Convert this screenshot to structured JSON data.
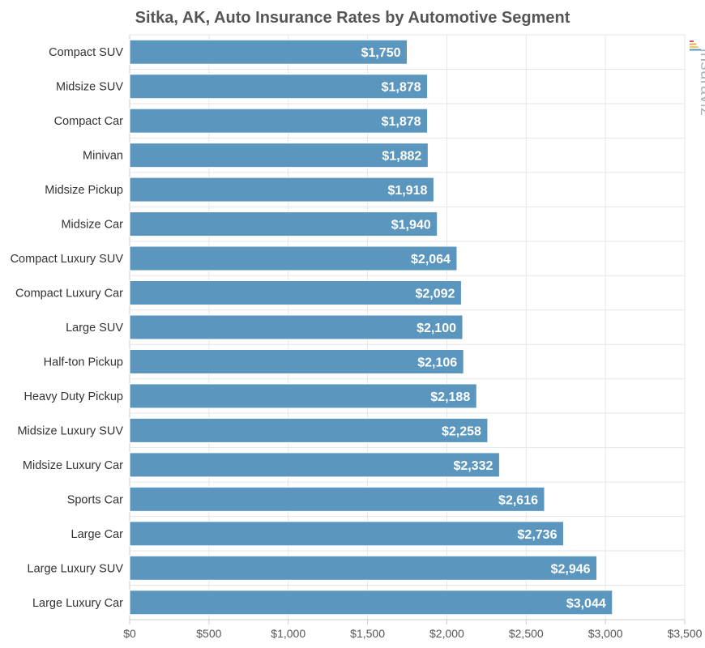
{
  "chart_data": {
    "type": "bar",
    "orientation": "horizontal",
    "title": "Sitka, AK, Auto Insurance Rates by Automotive Segment",
    "categories": [
      "Compact SUV",
      "Midsize SUV",
      "Compact Car",
      "Minivan",
      "Midsize Pickup",
      "Midsize Car",
      "Compact Luxury SUV",
      "Compact Luxury Car",
      "Large SUV",
      "Half-ton Pickup",
      "Heavy Duty Pickup",
      "Midsize Luxury SUV",
      "Midsize Luxury Car",
      "Sports Car",
      "Large Car",
      "Large Luxury SUV",
      "Large Luxury Car"
    ],
    "values": [
      1750,
      1878,
      1878,
      1882,
      1918,
      1940,
      2064,
      2092,
      2100,
      2106,
      2188,
      2258,
      2332,
      2616,
      2736,
      2946,
      3044
    ],
    "data_labels": [
      "$1,750",
      "$1,878",
      "$1,878",
      "$1,882",
      "$1,918",
      "$1,940",
      "$2,064",
      "$2,092",
      "$2,100",
      "$2,106",
      "$2,188",
      "$2,258",
      "$2,332",
      "$2,616",
      "$2,736",
      "$2,946",
      "$3,044"
    ],
    "x_ticks": [
      0,
      500,
      1000,
      1500,
      2000,
      2500,
      3000,
      3500
    ],
    "x_tick_labels": [
      "$0",
      "$500",
      "$1,000",
      "$1,500",
      "$2,000",
      "$2,500",
      "$3,000",
      "$3,500"
    ],
    "xlim": [
      0,
      3500
    ],
    "xlabel": "",
    "ylabel": "",
    "grid": true,
    "legend": "none",
    "bar_color": "#5b96bf",
    "grid_color": "#e6e6e6",
    "axis_color": "#cccccc"
  },
  "watermark": {
    "text": "insuraviz",
    "color": "#a9b3be",
    "accent_colors": [
      "#e84a5f",
      "#f7a35c",
      "#f4d03f",
      "#5b96bf"
    ]
  }
}
